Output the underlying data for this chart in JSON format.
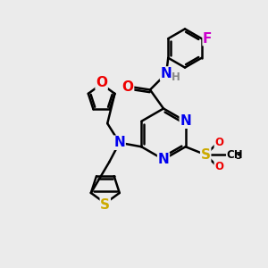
{
  "bg_color": "#ebebeb",
  "bond_color": "#000000",
  "bond_width": 1.8,
  "atom_colors": {
    "N": "#0000ee",
    "O": "#ee0000",
    "S": "#ccaa00",
    "F": "#cc00cc",
    "H": "#888888",
    "C": "#000000"
  },
  "font_size_atom": 11,
  "font_size_small": 8.5,
  "font_size_subscript": 8
}
